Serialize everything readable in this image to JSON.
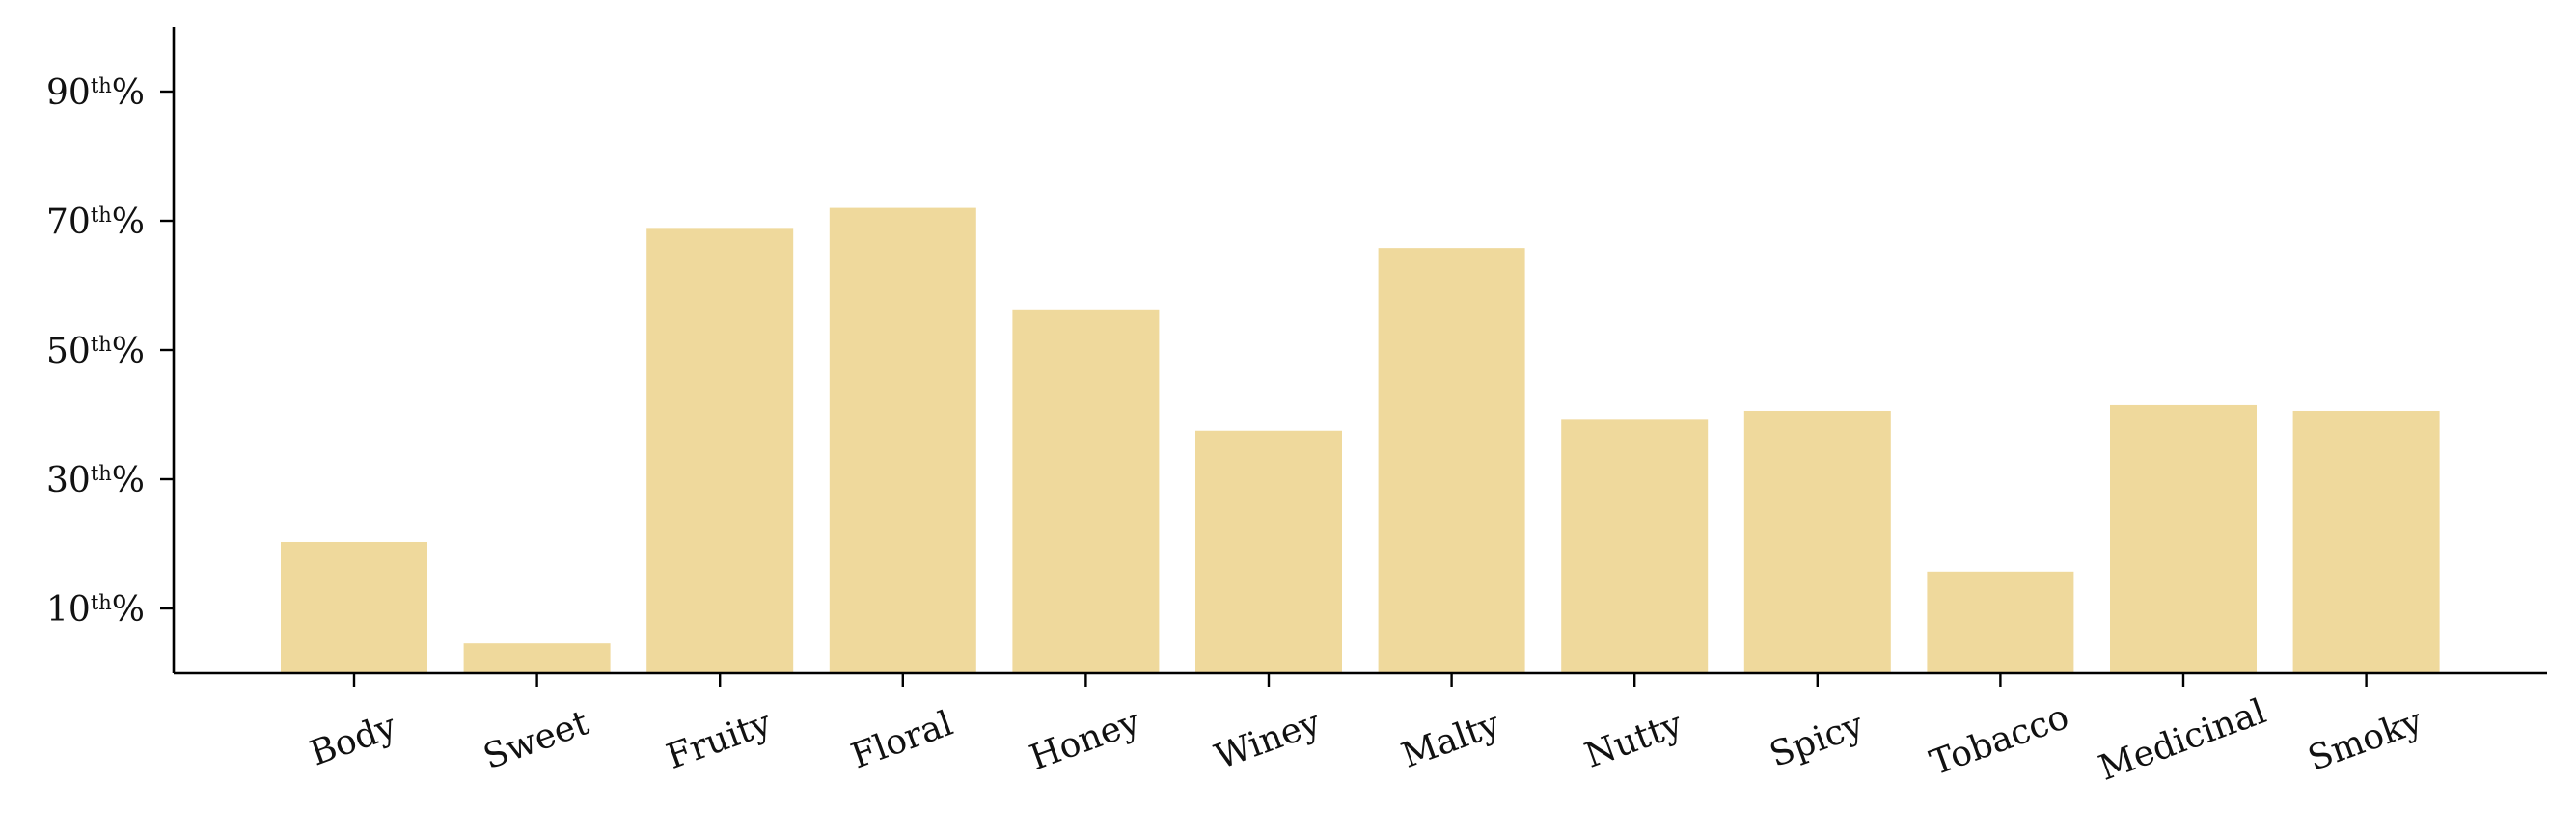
{
  "chart_data": {
    "type": "bar",
    "categories": [
      "Body",
      "Sweet",
      "Fruity",
      "Floral",
      "Honey",
      "Winey",
      "Malty",
      "Nutty",
      "Spicy",
      "Tobacco",
      "Medicinal",
      "Smoky"
    ],
    "values": [
      20.3,
      4.6,
      68.9,
      72.0,
      56.3,
      37.5,
      65.8,
      39.2,
      40.6,
      15.7,
      41.5,
      40.6
    ],
    "ylim": [
      0,
      100
    ],
    "yticks": [
      {
        "value": 10,
        "num": "10",
        "sup": "th",
        "suffix": "%"
      },
      {
        "value": 30,
        "num": "30",
        "sup": "th",
        "suffix": "%"
      },
      {
        "value": 50,
        "num": "50",
        "sup": "th",
        "suffix": "%"
      },
      {
        "value": 70,
        "num": "70",
        "sup": "th",
        "suffix": "%"
      },
      {
        "value": 90,
        "num": "90",
        "sup": "th",
        "suffix": "%"
      }
    ],
    "bar_color": "#efd99c",
    "grid": false,
    "legend": "none"
  }
}
